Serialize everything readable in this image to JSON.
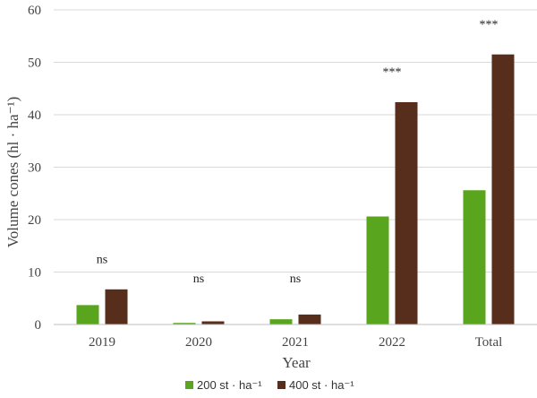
{
  "chart_data": {
    "type": "bar",
    "categories": [
      "2019",
      "2020",
      "2021",
      "2022",
      "Total"
    ],
    "series": [
      {
        "name": "200 st · ha⁻¹",
        "color": "#5aa51e",
        "values": [
          3.7,
          0.3,
          1.0,
          20.6,
          25.6
        ]
      },
      {
        "name": "400 st · ha⁻¹",
        "color": "#572d1b",
        "values": [
          6.7,
          0.6,
          1.9,
          42.4,
          51.5
        ]
      }
    ],
    "annotations": [
      "ns",
      "ns",
      "ns",
      "***",
      "***"
    ],
    "xlabel": "Year",
    "ylabel": "Volume cones (hl · ha⁻¹)",
    "ylim": [
      0,
      60
    ],
    "yticks": [
      0,
      10,
      20,
      30,
      40,
      50,
      60
    ],
    "grid": true,
    "legend": "bottom"
  }
}
